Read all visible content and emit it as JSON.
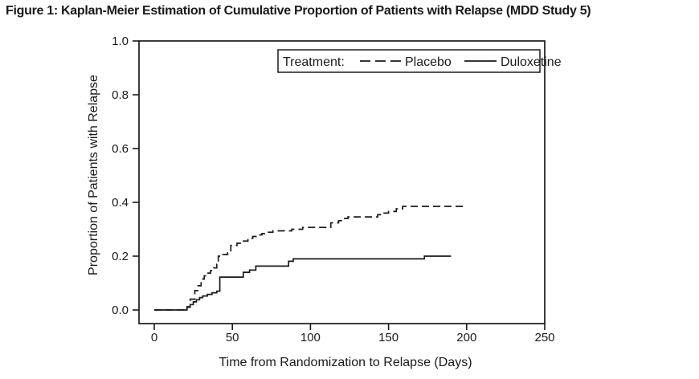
{
  "figure": {
    "title": "Figure 1: Kaplan-Meier Estimation of Cumulative Proportion of Patients with Relapse (MDD Study 5)"
  },
  "chart_data": {
    "type": "line",
    "subtype": "kaplan-meier-step",
    "title": "Figure 1: Kaplan-Meier Estimation of Cumulative Proportion of Patients with Relapse (MDD Study 5)",
    "xlabel": "Time from Randomization to Relapse (Days)",
    "ylabel": "Proportion of Patients with Relapse",
    "xlim": [
      0,
      250
    ],
    "ylim": [
      0.0,
      1.0
    ],
    "xticks": [
      0,
      50,
      100,
      150,
      200,
      250
    ],
    "yticks": [
      0.0,
      0.2,
      0.4,
      0.6,
      0.8,
      1.0
    ],
    "grid": false,
    "legend": {
      "label": "Treatment:",
      "position": "top-center-boxed",
      "entries": [
        {
          "name": "Placebo",
          "line_style": "dashed"
        },
        {
          "name": "Duloxetine",
          "line_style": "solid"
        }
      ]
    },
    "colors": {
      "foreground": "#1a1a1a",
      "background": "#ffffff"
    },
    "series": [
      {
        "name": "Placebo",
        "line_style": "dashed",
        "points": [
          [
            0,
            0.0
          ],
          [
            21,
            0.012
          ],
          [
            23,
            0.04
          ],
          [
            26,
            0.072
          ],
          [
            28,
            0.09
          ],
          [
            30,
            0.115
          ],
          [
            32,
            0.127
          ],
          [
            34,
            0.137
          ],
          [
            36,
            0.146
          ],
          [
            38,
            0.156
          ],
          [
            40,
            0.17
          ],
          [
            41,
            0.2
          ],
          [
            44,
            0.206
          ],
          [
            47,
            0.212
          ],
          [
            49,
            0.24
          ],
          [
            53,
            0.248
          ],
          [
            57,
            0.256
          ],
          [
            60,
            0.266
          ],
          [
            63,
            0.273
          ],
          [
            66,
            0.279
          ],
          [
            69,
            0.284
          ],
          [
            72,
            0.289
          ],
          [
            76,
            0.294
          ],
          [
            88,
            0.3
          ],
          [
            95,
            0.307
          ],
          [
            113,
            0.324
          ],
          [
            118,
            0.332
          ],
          [
            121,
            0.34
          ],
          [
            124,
            0.346
          ],
          [
            143,
            0.354
          ],
          [
            147,
            0.36
          ],
          [
            150,
            0.366
          ],
          [
            155,
            0.376
          ],
          [
            159,
            0.385
          ],
          [
            200,
            0.385
          ]
        ]
      },
      {
        "name": "Duloxetine",
        "line_style": "solid",
        "points": [
          [
            0,
            0.0
          ],
          [
            21,
            0.01
          ],
          [
            23,
            0.02
          ],
          [
            25,
            0.03
          ],
          [
            27,
            0.038
          ],
          [
            29,
            0.046
          ],
          [
            31,
            0.052
          ],
          [
            34,
            0.058
          ],
          [
            37,
            0.064
          ],
          [
            40,
            0.07
          ],
          [
            42,
            0.122
          ],
          [
            57,
            0.14
          ],
          [
            61,
            0.148
          ],
          [
            65,
            0.163
          ],
          [
            86,
            0.181
          ],
          [
            89,
            0.19
          ],
          [
            173,
            0.2
          ],
          [
            190,
            0.2
          ]
        ]
      }
    ]
  }
}
